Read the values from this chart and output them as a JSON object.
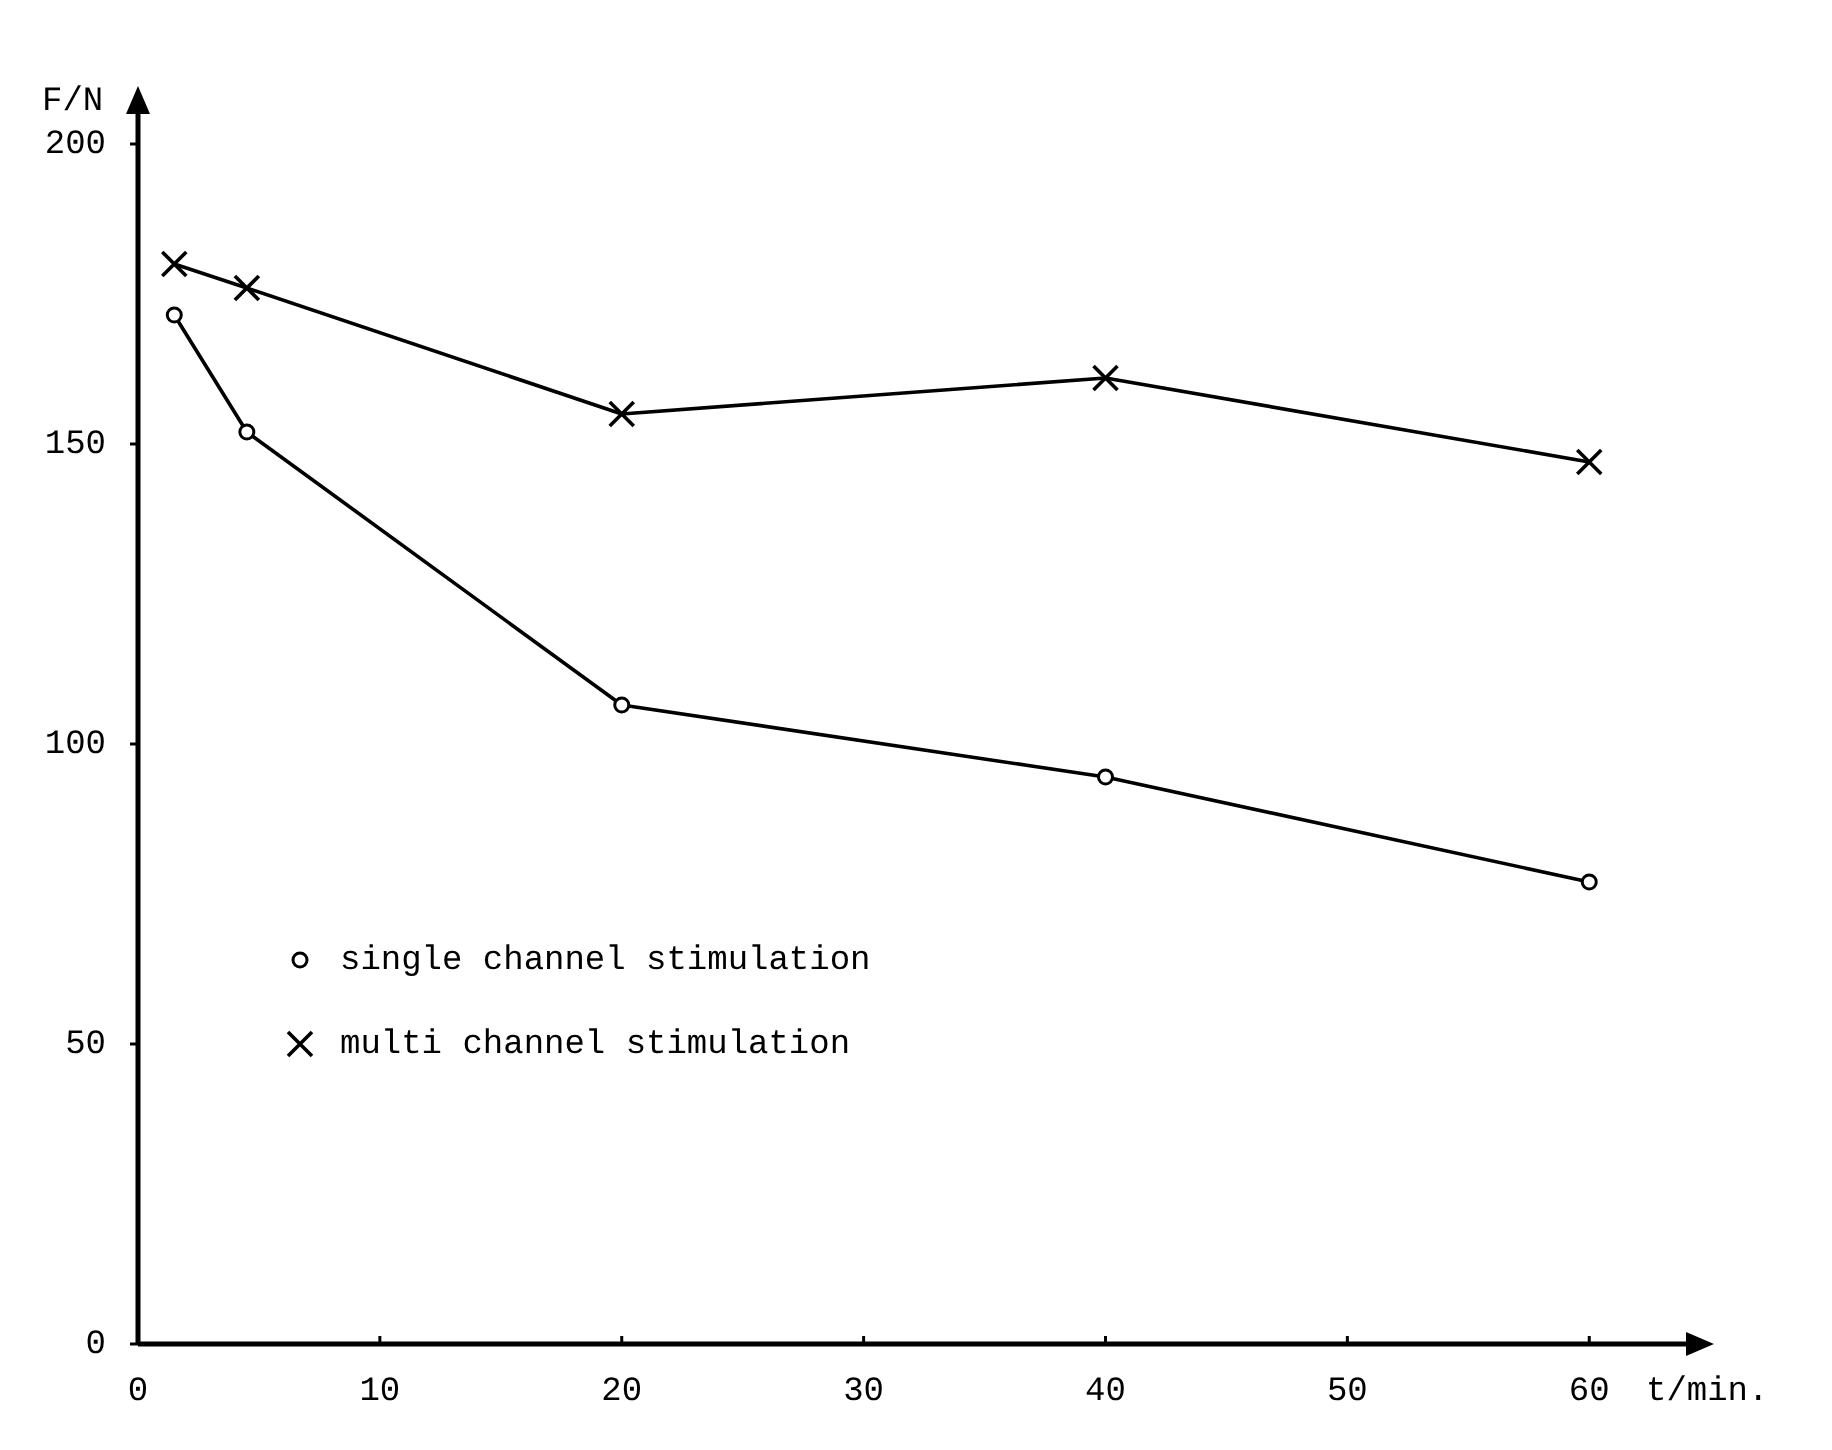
{
  "chart_data": {
    "type": "line",
    "xlabel": "t/min.",
    "ylabel": "F/N",
    "xlim": [
      0,
      64
    ],
    "ylim": [
      0,
      205
    ],
    "xticks": [
      0,
      10,
      20,
      30,
      40,
      50,
      60
    ],
    "yticks": [
      0,
      50,
      100,
      150,
      200
    ],
    "grid": false,
    "legend": "bottom left",
    "line_style": "solid",
    "x": [
      1.5,
      4.5,
      20,
      40,
      60
    ],
    "series": [
      {
        "name": "single channel stimulation",
        "color": "#000000",
        "marker": "circle",
        "values": [
          171.5,
          152,
          106.5,
          94.5,
          77
        ]
      },
      {
        "name": "multi channel stimulation",
        "color": "#000000",
        "marker": "cross",
        "values": [
          180,
          176,
          155,
          161,
          147
        ]
      }
    ]
  }
}
